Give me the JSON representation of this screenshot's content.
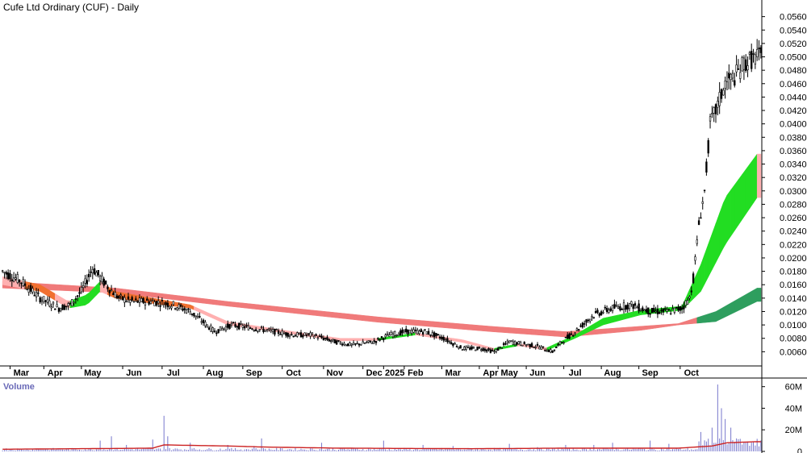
{
  "chart_title": "Cufe Ltd Ordinary (CUF) - Daily",
  "volume_title": "Volume",
  "colors": {
    "candle": "#000000",
    "long_band": "#f07a7a",
    "short_band_up": "#22dd22",
    "short_band_down": "#ffb0b0",
    "short_band_mid": "#f07030",
    "volume_bar": "#7777cc",
    "volume_avg": "#cc2222",
    "long_band_up": "#2e9e5e"
  },
  "chart_data": [
    {
      "type": "candlestick",
      "title": "Cufe Ltd Ordinary (CUF) - Daily",
      "y_ticks": [
        "0.0060",
        "0.0080",
        "0.0100",
        "0.0120",
        "0.0140",
        "0.0160",
        "0.0180",
        "0.0200",
        "0.0220",
        "0.0240",
        "0.0260",
        "0.0280",
        "0.0300",
        "0.0320",
        "0.0340",
        "0.0360",
        "0.0380",
        "0.0400",
        "0.0420",
        "0.0440",
        "0.0460",
        "0.0480",
        "0.0500",
        "0.0520",
        "0.0540",
        "0.0560"
      ],
      "ylim": [
        0.004,
        0.058
      ],
      "x_labels": [
        "Mar",
        "Apr",
        "May",
        "Jun",
        "Jul",
        "Aug",
        "Sep",
        "Oct",
        "Nov",
        "Dec",
        "2025",
        "Feb",
        "Mar",
        "Apr",
        "May",
        "Jun",
        "Jul",
        "Aug",
        "Sep",
        "Oct"
      ],
      "x_label_index": [
        10,
        28,
        48,
        70,
        91,
        113,
        134,
        155,
        177,
        198,
        209,
        220,
        240,
        260,
        270,
        285,
        305,
        325,
        345,
        367
      ],
      "bar_count": 405,
      "close_anchors": [
        [
          0,
          0.018
        ],
        [
          10,
          0.0165
        ],
        [
          20,
          0.014
        ],
        [
          30,
          0.0125
        ],
        [
          36,
          0.013
        ],
        [
          42,
          0.015
        ],
        [
          48,
          0.0185
        ],
        [
          55,
          0.016
        ],
        [
          62,
          0.014
        ],
        [
          70,
          0.0135
        ],
        [
          80,
          0.0135
        ],
        [
          91,
          0.013
        ],
        [
          100,
          0.012
        ],
        [
          113,
          0.009
        ],
        [
          122,
          0.01
        ],
        [
          134,
          0.0095
        ],
        [
          145,
          0.009
        ],
        [
          155,
          0.0085
        ],
        [
          165,
          0.0085
        ],
        [
          177,
          0.0075
        ],
        [
          186,
          0.007
        ],
        [
          198,
          0.0075
        ],
        [
          206,
          0.0085
        ],
        [
          215,
          0.009
        ],
        [
          225,
          0.009
        ],
        [
          235,
          0.008
        ],
        [
          245,
          0.0065
        ],
        [
          255,
          0.0065
        ],
        [
          262,
          0.006
        ],
        [
          270,
          0.0075
        ],
        [
          285,
          0.0068
        ],
        [
          293,
          0.006
        ],
        [
          298,
          0.0075
        ],
        [
          305,
          0.009
        ],
        [
          315,
          0.0115
        ],
        [
          325,
          0.0125
        ],
        [
          335,
          0.013
        ],
        [
          345,
          0.012
        ],
        [
          355,
          0.012
        ],
        [
          362,
          0.0125
        ],
        [
          366,
          0.014
        ],
        [
          368,
          0.017
        ],
        [
          371,
          0.025
        ],
        [
          374,
          0.03
        ],
        [
          377,
          0.04
        ],
        [
          380,
          0.042
        ],
        [
          385,
          0.046
        ],
        [
          390,
          0.047
        ],
        [
          395,
          0.049
        ],
        [
          402,
          0.05
        ]
      ],
      "long_band_upper": [
        [
          0,
          0.0165
        ],
        [
          60,
          0.0155
        ],
        [
          120,
          0.0135
        ],
        [
          200,
          0.0112
        ],
        [
          260,
          0.0098
        ],
        [
          300,
          0.009
        ],
        [
          340,
          0.0098
        ],
        [
          360,
          0.0102
        ],
        [
          380,
          0.012
        ],
        [
          402,
          0.0155
        ]
      ],
      "long_band_lower": [
        [
          0,
          0.0155
        ],
        [
          60,
          0.0148
        ],
        [
          120,
          0.0128
        ],
        [
          200,
          0.0104
        ],
        [
          260,
          0.009
        ],
        [
          300,
          0.0082
        ],
        [
          340,
          0.0092
        ],
        [
          360,
          0.01
        ],
        [
          380,
          0.0105
        ],
        [
          402,
          0.0135
        ]
      ],
      "short_band_upper": [
        [
          0,
          0.0172
        ],
        [
          20,
          0.016
        ],
        [
          35,
          0.0135
        ],
        [
          45,
          0.0145
        ],
        [
          52,
          0.0165
        ],
        [
          60,
          0.015
        ],
        [
          80,
          0.014
        ],
        [
          100,
          0.013
        ],
        [
          120,
          0.0105
        ],
        [
          150,
          0.0092
        ],
        [
          180,
          0.008
        ],
        [
          200,
          0.008
        ],
        [
          220,
          0.0088
        ],
        [
          245,
          0.0078
        ],
        [
          262,
          0.0065
        ],
        [
          275,
          0.0072
        ],
        [
          290,
          0.0066
        ],
        [
          305,
          0.0085
        ],
        [
          320,
          0.011
        ],
        [
          340,
          0.0122
        ],
        [
          362,
          0.0128
        ],
        [
          372,
          0.019
        ],
        [
          385,
          0.029
        ],
        [
          402,
          0.0355
        ]
      ],
      "short_band_lower": [
        [
          0,
          0.016
        ],
        [
          20,
          0.015
        ],
        [
          35,
          0.0125
        ],
        [
          45,
          0.013
        ],
        [
          52,
          0.015
        ],
        [
          60,
          0.014
        ],
        [
          80,
          0.0132
        ],
        [
          100,
          0.0125
        ],
        [
          120,
          0.01
        ],
        [
          150,
          0.0088
        ],
        [
          180,
          0.0076
        ],
        [
          200,
          0.0077
        ],
        [
          220,
          0.0085
        ],
        [
          245,
          0.0074
        ],
        [
          262,
          0.0062
        ],
        [
          275,
          0.0069
        ],
        [
          290,
          0.0062
        ],
        [
          305,
          0.008
        ],
        [
          320,
          0.01
        ],
        [
          340,
          0.0115
        ],
        [
          362,
          0.0122
        ],
        [
          372,
          0.015
        ],
        [
          385,
          0.022
        ],
        [
          402,
          0.029
        ]
      ]
    },
    {
      "type": "bar",
      "title": "Volume",
      "y_ticks": [
        "0",
        "20M",
        "40M",
        "60M"
      ],
      "ylim": [
        0,
        65
      ],
      "unit": "M",
      "spikes": [
        [
          52,
          10
        ],
        [
          58,
          14
        ],
        [
          66,
          6
        ],
        [
          80,
          11
        ],
        [
          86,
          33
        ],
        [
          88,
          14
        ],
        [
          100,
          8
        ],
        [
          120,
          6
        ],
        [
          134,
          5
        ],
        [
          138,
          12
        ],
        [
          170,
          8
        ],
        [
          203,
          10
        ],
        [
          224,
          6
        ],
        [
          240,
          5
        ],
        [
          270,
          7
        ],
        [
          285,
          4
        ],
        [
          300,
          6
        ],
        [
          315,
          6
        ],
        [
          325,
          8
        ],
        [
          345,
          10
        ],
        [
          355,
          7
        ],
        [
          372,
          18
        ],
        [
          378,
          22
        ],
        [
          381,
          62
        ],
        [
          383,
          40
        ],
        [
          385,
          30
        ],
        [
          388,
          22
        ],
        [
          391,
          12
        ],
        [
          396,
          8
        ]
      ],
      "base_volume": 2,
      "avg_anchors": [
        [
          0,
          2
        ],
        [
          80,
          3
        ],
        [
          86,
          6
        ],
        [
          120,
          5
        ],
        [
          140,
          4
        ],
        [
          180,
          3
        ],
        [
          250,
          2.5
        ],
        [
          300,
          3
        ],
        [
          360,
          3
        ],
        [
          378,
          5
        ],
        [
          386,
          8
        ],
        [
          402,
          9
        ]
      ]
    }
  ]
}
